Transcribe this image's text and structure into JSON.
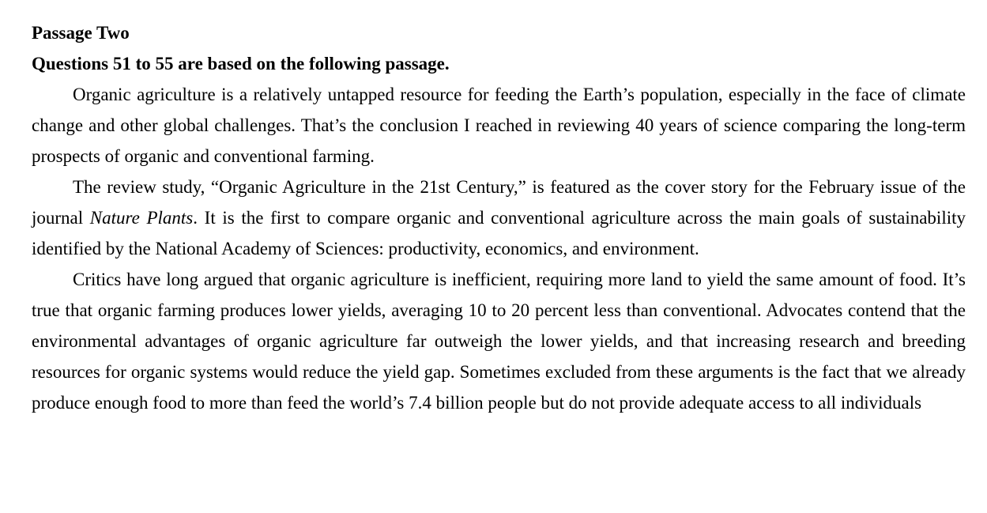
{
  "passage": {
    "title": "Passage Two",
    "instruction": "Questions 51 to 55 are based on the following passage.",
    "paragraph_1": "Organic agriculture is a relatively untapped resource for feeding the Earth’s population, especially in the face of climate change and other global challenges. That’s the conclusion I reached in reviewing 40 years of science comparing the long-term prospects of organic and conventional farming.",
    "paragraph_2_before_journal": "The review study, “Organic Agriculture in the 21st Century,” is featured as the cover story for the February issue of the journal ",
    "paragraph_2_journal": "Nature Plants",
    "paragraph_2_after_journal": ". It is the first to compare organic and conventional agriculture across the main goals of sustainability identified by the National Academy of Sciences: productivity, economics, and environment.",
    "paragraph_3": "Critics have long argued that organic agriculture is inefficient, requiring more land to yield the same amount of food. It’s true that organic farming produces lower yields, averaging 10 to 20 percent less than conventional. Advocates contend that the environmental advantages of organic agriculture far outweigh the lower yields, and that increasing research and breeding resources for organic systems would reduce the yield gap. Sometimes excluded from these arguments is the fact that we already produce enough food to more than feed the world’s 7.4 billion people but do not provide adequate access to all individuals"
  }
}
